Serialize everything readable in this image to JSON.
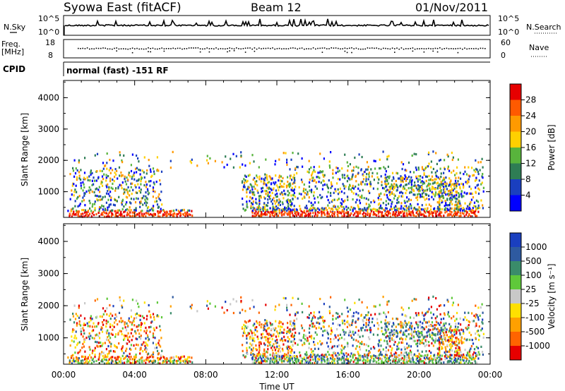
{
  "header": {
    "station": "Syowa East (fitACF)",
    "beam": "Beam 12",
    "date": "01/Nov/2011"
  },
  "top_panels": {
    "nsky_label": "N.Sky",
    "nsky_ticks": [
      "10^5",
      "10^0"
    ],
    "nsearch_label": "N.Search",
    "nsearch_ticks": [
      "10^5",
      "10^0"
    ],
    "freq_label_1": "Freq.",
    "freq_label_2": "[MHz]",
    "freq_ticks": [
      "18",
      "8"
    ],
    "nave_label": "Nave",
    "nave_ticks": [
      "60",
      "0"
    ],
    "cpid_label": "CPID",
    "cpid_text": "normal (fast) -151 RF"
  },
  "chart_data": [
    {
      "type": "heatmap",
      "variable": "power",
      "ylabel": "Slant Range [km]",
      "yticks": [
        "4000",
        "3000",
        "2000",
        "1000"
      ],
      "ylim": [
        180,
        4550
      ],
      "xlabel": "Time UT",
      "xticks": [
        "00:00",
        "04:00",
        "08:00",
        "12:00",
        "16:00",
        "20:00",
        "00:00"
      ],
      "colorbar": {
        "label": "Power [dB]",
        "ticks": [
          "28",
          "24",
          "20",
          "16",
          "12",
          "8",
          "4"
        ],
        "range": [
          0,
          32
        ],
        "colors": [
          "#e60000",
          "#ff5a00",
          "#ff9a00",
          "#ffd000",
          "#58b43c",
          "#2e7d54",
          "#1a3fbf",
          "#0000ff"
        ]
      }
    },
    {
      "type": "heatmap",
      "variable": "velocity",
      "ylabel": "Slant Range [km]",
      "yticks": [
        "4000",
        "3000",
        "2000",
        "1000"
      ],
      "ylim": [
        180,
        4550
      ],
      "xlabel": "Time UT",
      "xticks": [
        "00:00",
        "04:00",
        "08:00",
        "12:00",
        "16:00",
        "20:00",
        "00:00"
      ],
      "colorbar": {
        "label": "Velocity [m s⁻¹]",
        "ticks": [
          "1000",
          "500",
          "100",
          "25",
          "-25",
          "-100",
          "-500",
          "-1000"
        ],
        "colors": [
          "#1a3fbf",
          "#2e5aa0",
          "#3a8c6a",
          "#5fc83a",
          "#c8c8c8",
          "#ffe000",
          "#ffa000",
          "#ff6400",
          "#e60000"
        ]
      }
    }
  ]
}
